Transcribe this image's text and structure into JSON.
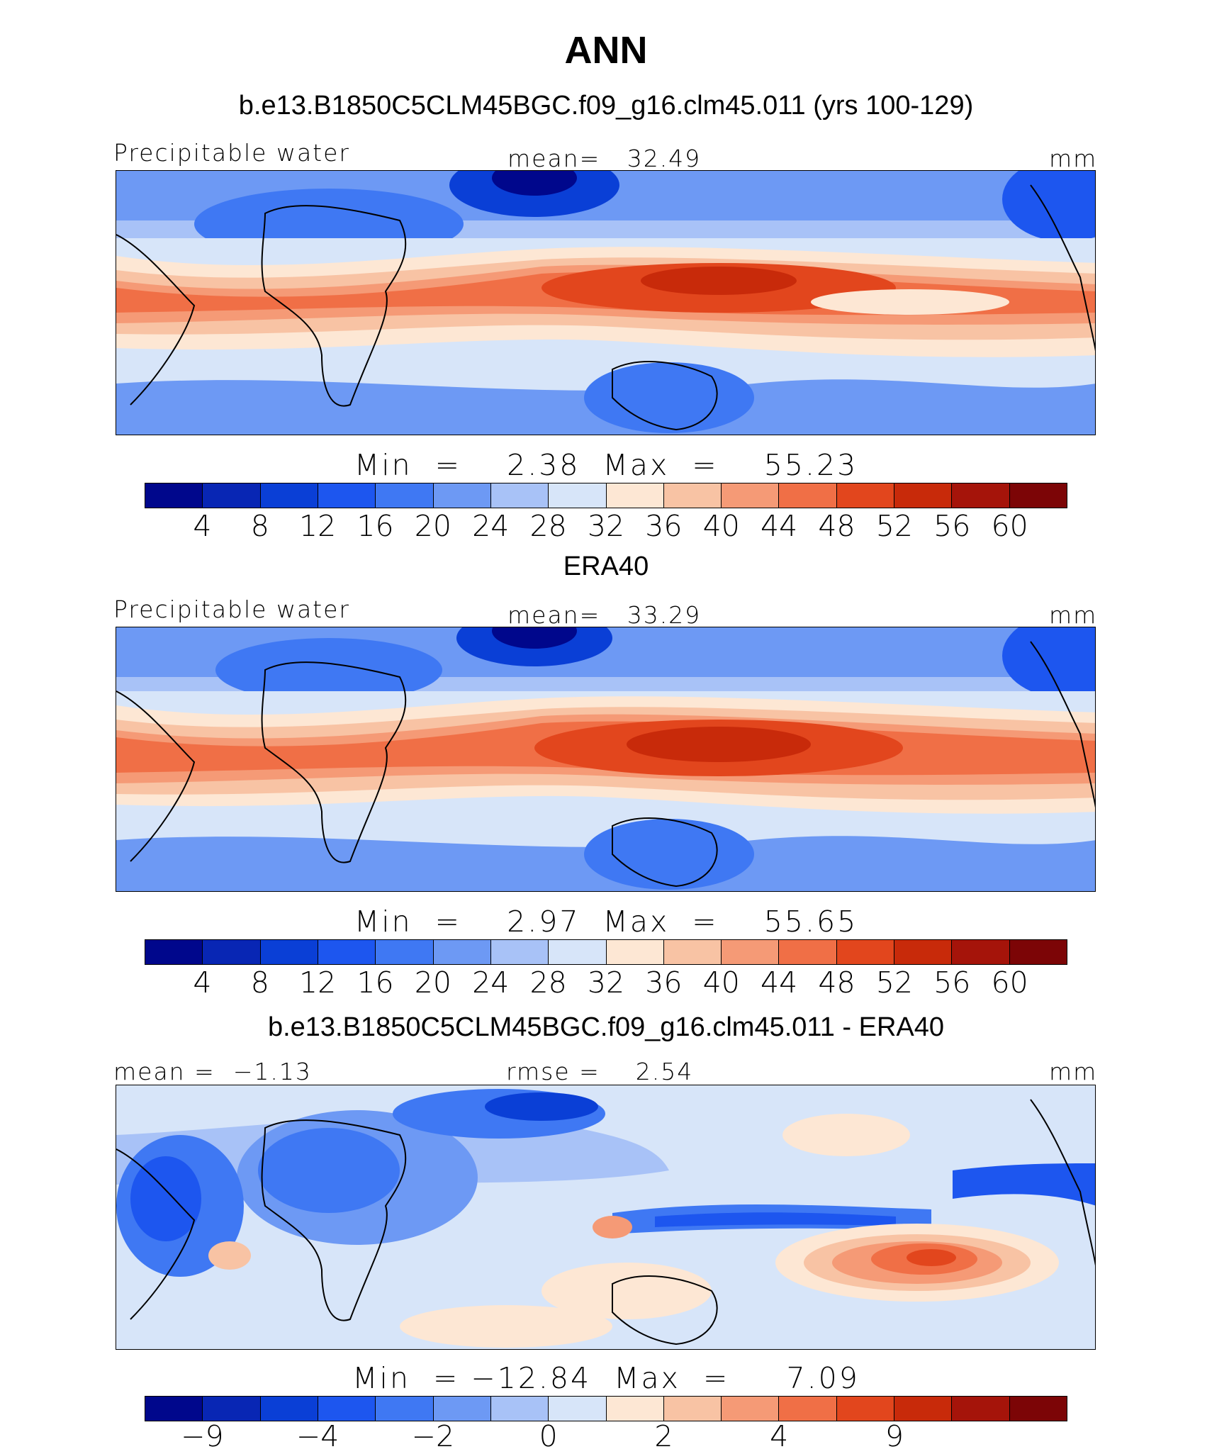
{
  "figure": {
    "season": "ANN"
  },
  "panels": [
    {
      "title": "b.e13.B1850C5CLM45BGC.f09_g16.clm45.011 (yrs 100-129)",
      "left_label": "Precipitable water",
      "center_label": "mean=   32.49",
      "units": "mm",
      "min_max": "Min  =    2.38  Max  =    55.23"
    },
    {
      "title": "ERA40",
      "left_label": "Precipitable water",
      "center_label": "mean=   33.29",
      "units": "mm",
      "min_max": "Min  =    2.97  Max  =    55.65"
    },
    {
      "title": "b.e13.B1850C5CLM45BGC.f09_g16.clm45.011 - ERA40",
      "left_label": "mean =  −1.13",
      "center_label": "rmse =    2.54",
      "units": "mm",
      "min_max": "Min  = −12.84  Max  =     7.09"
    }
  ],
  "colorbars": {
    "absolute": {
      "colors": [
        "#00078c",
        "#0826b4",
        "#0a3fd6",
        "#1d56ef",
        "#3f78f3",
        "#6d99f4",
        "#a8c2f7",
        "#d7e5f9",
        "#fde7d4",
        "#f8c3a4",
        "#f59a76",
        "#f06f46",
        "#e2461d",
        "#c82a0a",
        "#a5140a",
        "#7c0506"
      ],
      "tick_labels": [
        "4",
        "8",
        "12",
        "16",
        "20",
        "24",
        "28",
        "32",
        "36",
        "40",
        "44",
        "48",
        "52",
        "56",
        "60"
      ]
    },
    "difference": {
      "colors": [
        "#00078c",
        "#0826b4",
        "#0a3fd6",
        "#1d56ef",
        "#3f78f3",
        "#6d99f4",
        "#a8c2f7",
        "#d7e5f9",
        "#fde7d4",
        "#f8c3a4",
        "#f59a76",
        "#f06f46",
        "#e2461d",
        "#c82a0a",
        "#a5140a",
        "#7c0506"
      ],
      "tick_labels": [
        "−9",
        "−4",
        "−2",
        "0",
        "2",
        "4",
        "9"
      ]
    }
  },
  "chart_data": [
    {
      "type": "heatmap",
      "title": "b.e13.B1850C5CLM45BGC.f09_g16.clm45.011 (yrs 100-129)",
      "variable": "Precipitable water",
      "units": "mm",
      "mean": 32.49,
      "min": 2.38,
      "max": 55.23,
      "levels": [
        4,
        8,
        12,
        16,
        20,
        24,
        28,
        32,
        36,
        40,
        44,
        48,
        52,
        56,
        60
      ]
    },
    {
      "type": "heatmap",
      "title": "ERA40",
      "variable": "Precipitable water",
      "units": "mm",
      "mean": 33.29,
      "min": 2.97,
      "max": 55.65,
      "levels": [
        4,
        8,
        12,
        16,
        20,
        24,
        28,
        32,
        36,
        40,
        44,
        48,
        52,
        56,
        60
      ]
    },
    {
      "type": "heatmap",
      "title": "b.e13.B1850C5CLM45BGC.f09_g16.clm45.011 - ERA40",
      "units": "mm",
      "mean": -1.13,
      "rmse": 2.54,
      "min": -12.84,
      "max": 7.09,
      "levels": [
        -9,
        -4,
        -2,
        0,
        2,
        4,
        9
      ]
    }
  ]
}
